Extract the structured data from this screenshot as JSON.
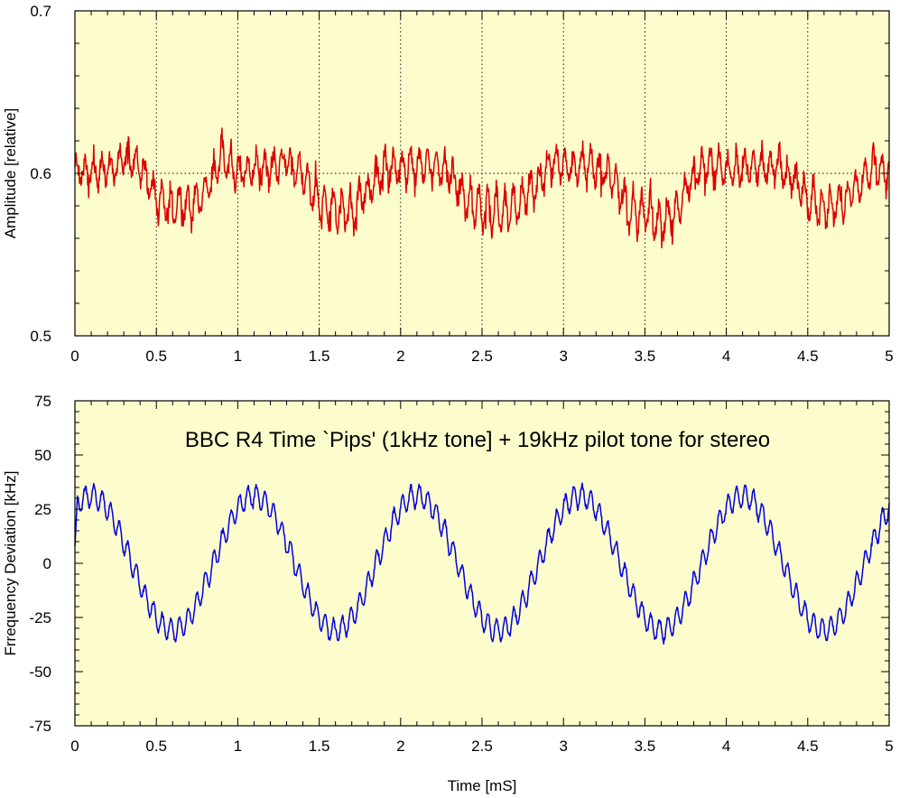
{
  "chart_data": [
    {
      "type": "line",
      "title": "",
      "xlabel": "",
      "ylabel": "Amplitude [relative]",
      "xlim": [
        0,
        5
      ],
      "ylim": [
        0.5,
        0.7
      ],
      "x_ticks": [
        0,
        0.5,
        1,
        1.5,
        2,
        2.5,
        3,
        3.5,
        4,
        4.5,
        5
      ],
      "x_tick_labels": [
        "0",
        "0.5",
        "1",
        "1.5",
        "2",
        "2.5",
        "3",
        "3.5",
        "4",
        "4.5",
        "5"
      ],
      "y_ticks": [
        0.5,
        0.6,
        0.7
      ],
      "y_tick_labels": [
        "0.5",
        "0.6",
        "0.7"
      ],
      "grid": "dotted",
      "background_color": "#fdfccc",
      "series": [
        {
          "color": "#dd0000",
          "x": [
            0,
            0.25,
            0.3,
            0.4,
            0.5,
            0.6,
            0.7,
            0.8,
            0.9,
            1.0,
            1.1,
            1.2,
            1.3,
            1.4,
            1.5,
            1.6,
            1.7,
            1.8,
            1.9,
            2.0,
            2.1,
            2.2,
            2.3,
            2.4,
            2.5,
            2.6,
            2.7,
            2.8,
            2.9,
            3.0,
            3.1,
            3.2,
            3.3,
            3.4,
            3.5,
            3.6,
            3.7,
            3.8,
            3.9,
            4.0,
            4.1,
            4.2,
            4.3,
            4.4,
            4.5,
            4.6,
            4.7,
            4.8,
            4.9,
            5.0
          ],
          "y": [
            0.6,
            0.603,
            0.61,
            0.605,
            0.585,
            0.578,
            0.58,
            0.588,
            0.61,
            0.6,
            0.603,
            0.603,
            0.605,
            0.6,
            0.58,
            0.577,
            0.577,
            0.59,
            0.603,
            0.603,
            0.605,
            0.605,
            0.6,
            0.583,
            0.578,
            0.577,
            0.58,
            0.59,
            0.603,
            0.605,
            0.605,
            0.603,
            0.598,
            0.578,
            0.575,
            0.57,
            0.578,
            0.6,
            0.605,
            0.602,
            0.603,
            0.605,
            0.605,
            0.598,
            0.585,
            0.578,
            0.58,
            0.59,
            0.605,
            0.6
          ]
        }
      ]
    },
    {
      "type": "line",
      "title": "",
      "annotation": "BBC R4 Time `Pips' (1kHz tone] + 19kHz pilot tone for stereo",
      "xlabel": "Time [mS]",
      "ylabel": "Frrequency Deviation [kHz]",
      "xlim": [
        0,
        5
      ],
      "ylim": [
        -75,
        75
      ],
      "x_ticks": [
        0,
        0.5,
        1,
        1.5,
        2,
        2.5,
        3,
        3.5,
        4,
        4.5,
        5
      ],
      "x_tick_labels": [
        "0",
        "0.5",
        "1",
        "1.5",
        "2",
        "2.5",
        "3",
        "3.5",
        "4",
        "4.5",
        "5"
      ],
      "y_ticks": [
        -75,
        -50,
        -25,
        0,
        25,
        50,
        75
      ],
      "y_tick_labels": [
        "-75",
        "-50",
        "-25",
        "0",
        "25",
        "50",
        "75"
      ],
      "grid": "none",
      "background_color": "#fdfccc",
      "series": [
        {
          "color": "#0000dd",
          "description_of_shape": "1 kHz sinusoid (amplitude ~31 kHz, peak at x≈0.1 mS) with superimposed 19 kHz ripple (amplitude ~5 kHz)",
          "x": [
            0,
            0.1,
            0.35,
            0.6,
            0.85,
            1.1,
            1.35,
            1.6,
            1.85,
            2.1,
            2.35,
            2.6,
            2.85,
            3.1,
            3.35,
            3.6,
            3.85,
            4.1,
            4.35,
            4.6,
            4.85,
            5.0
          ],
          "y": [
            30,
            32,
            0,
            -32,
            0,
            32,
            0,
            -32,
            0,
            32,
            0,
            -32,
            0,
            32,
            0,
            -32,
            0,
            32,
            0,
            -32,
            0,
            20
          ]
        }
      ]
    }
  ]
}
